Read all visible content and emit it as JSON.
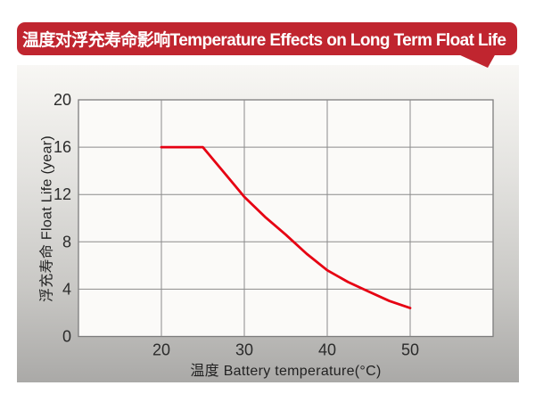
{
  "banner": {
    "title": "温度对浮充寿命影响Temperature Effects on Long Term Float Life",
    "bg_color": "#c0252f",
    "text_color": "#ffffff"
  },
  "chart_data": {
    "type": "line",
    "title": "温度对浮充寿命影响Temperature Effects on Long Term Float Life",
    "xlabel": "温度 Battery temperature(°C)",
    "ylabel": "浮充寿命 Float Life (year)",
    "xlim": [
      10,
      60
    ],
    "ylim": [
      0,
      20
    ],
    "xticks": [
      "20",
      "30",
      "40",
      "50"
    ],
    "xtick_values": [
      20,
      30,
      40,
      50
    ],
    "yticks": [
      "0",
      "4",
      "8",
      "12",
      "16",
      "20"
    ],
    "ytick_values": [
      0,
      4,
      8,
      12,
      16,
      20
    ],
    "grid": true,
    "legend": false,
    "series": [
      {
        "name": "float-life-curve",
        "color": "#e60012",
        "points": [
          [
            20,
            16
          ],
          [
            25,
            16
          ],
          [
            27.5,
            13.9
          ],
          [
            30,
            11.8
          ],
          [
            32.5,
            10.1
          ],
          [
            35,
            8.6
          ],
          [
            37.5,
            7.0
          ],
          [
            40,
            5.6
          ],
          [
            42.5,
            4.6
          ],
          [
            45,
            3.8
          ],
          [
            47.5,
            3.0
          ],
          [
            50,
            2.4
          ]
        ]
      }
    ],
    "plot_bg_color": "#fbfaf8",
    "grid_color": "#8b8b8b",
    "border_color": "#7d7d7d"
  },
  "colors": {
    "accent_red": "#c0252f",
    "curve_red": "#e60012",
    "panel_top": "#f8f7f4",
    "panel_bottom": "#aaa9a7"
  }
}
